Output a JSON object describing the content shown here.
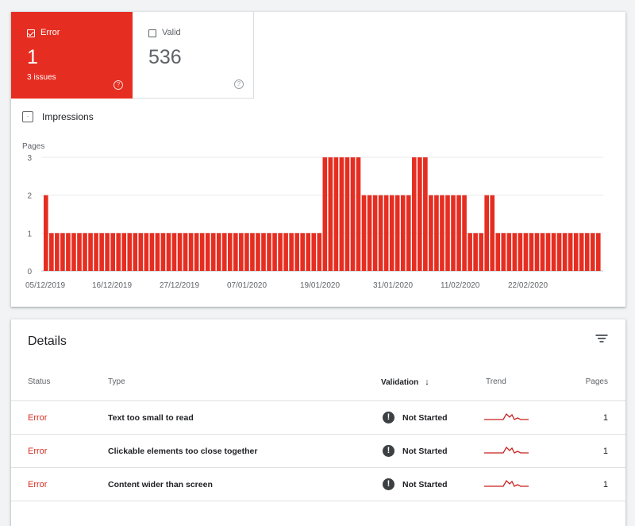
{
  "summary": {
    "error": {
      "label": "Error",
      "value": "1",
      "subtitle": "3 issues",
      "help": "?"
    },
    "valid": {
      "label": "Valid",
      "value": "536",
      "help": "?"
    }
  },
  "impressions": {
    "label": "Impressions",
    "checkbox_glyph": "·"
  },
  "colors": {
    "error": "#e52e21",
    "status_error_text": "#d93025",
    "grid": "#e0e0e0"
  },
  "chart_data": {
    "type": "bar",
    "ylabel": "Pages",
    "ylim": [
      0,
      3
    ],
    "yticks": [
      0,
      1,
      2,
      3
    ],
    "xtick_labels": [
      "05/12/2019",
      "16/12/2019",
      "27/12/2019",
      "07/01/2020",
      "19/01/2020",
      "31/01/2020",
      "11/02/2020",
      "22/02/2020"
    ],
    "color": "#e52e21",
    "grid": true,
    "values": [
      2,
      1,
      1,
      1,
      1,
      1,
      1,
      1,
      1,
      1,
      1,
      1,
      1,
      1,
      1,
      1,
      1,
      1,
      1,
      1,
      1,
      1,
      1,
      1,
      1,
      1,
      1,
      1,
      1,
      1,
      1,
      1,
      1,
      1,
      1,
      1,
      1,
      1,
      1,
      1,
      1,
      1,
      1,
      1,
      1,
      1,
      1,
      1,
      1,
      1,
      3,
      3,
      3,
      3,
      3,
      3,
      3,
      2,
      2,
      2,
      2,
      2,
      2,
      2,
      2,
      2,
      3,
      3,
      3,
      2,
      2,
      2,
      2,
      2,
      2,
      2,
      1,
      1,
      1,
      2,
      2,
      1,
      1,
      1,
      1,
      1,
      1,
      1,
      1,
      1,
      1,
      1,
      1,
      1,
      1,
      1,
      1,
      1,
      1,
      1
    ]
  },
  "details": {
    "title": "Details",
    "filter_icon": "filter-icon",
    "columns": {
      "status": "Status",
      "type": "Type",
      "validation": "Validation",
      "sort_arrow": "↓",
      "trend": "Trend",
      "pages": "Pages"
    },
    "rows": [
      {
        "status": "Error",
        "type": "Text too small to read",
        "validation": "Not Started",
        "warn": "!",
        "pages": "1"
      },
      {
        "status": "Error",
        "type": "Clickable elements too close together",
        "validation": "Not Started",
        "warn": "!",
        "pages": "1"
      },
      {
        "status": "Error",
        "type": "Content wider than screen",
        "validation": "Not Started",
        "warn": "!",
        "pages": "1"
      }
    ]
  }
}
